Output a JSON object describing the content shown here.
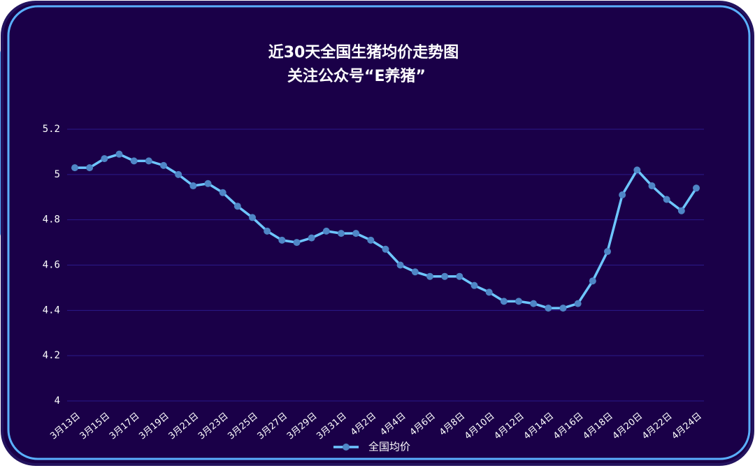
{
  "chart_data": {
    "type": "line",
    "title": "近30天全国生猪均价走势图",
    "subtitle": "关注公众号“E养猪”",
    "categories": [
      "3月13日",
      null,
      "3月15日",
      null,
      "3月17日",
      null,
      "3月19日",
      null,
      "3月21日",
      null,
      "3月23日",
      null,
      "3月25日",
      null,
      "3月27日",
      null,
      "3月29日",
      null,
      "3月31日",
      null,
      "4月2日",
      null,
      "4月4日",
      null,
      "4月6日",
      null,
      "4月8日",
      null,
      "4月10日",
      null,
      "4月12日",
      null,
      "4月14日",
      null,
      "4月16日",
      null,
      "4月18日",
      null,
      "4月20日",
      null,
      "4月22日",
      null,
      "4月24日"
    ],
    "series": [
      {
        "name": "全国均价",
        "color": "#6ec6ff",
        "values": [
          5.03,
          5.03,
          5.07,
          5.09,
          5.06,
          5.06,
          5.04,
          5.0,
          4.95,
          4.96,
          4.92,
          4.86,
          4.81,
          4.75,
          4.71,
          4.7,
          4.72,
          4.75,
          4.74,
          4.74,
          4.71,
          4.67,
          4.6,
          4.57,
          4.55,
          4.55,
          4.55,
          4.51,
          4.48,
          4.44,
          4.44,
          4.43,
          4.41,
          4.41,
          4.43,
          4.53,
          4.66,
          4.91,
          5.02,
          4.95,
          4.89,
          4.84,
          4.94
        ]
      }
    ],
    "ylim": [
      4,
      5.2
    ],
    "yticks": [
      4,
      4.2,
      4.4,
      4.6,
      4.8,
      5,
      5.2
    ],
    "grid": true
  }
}
